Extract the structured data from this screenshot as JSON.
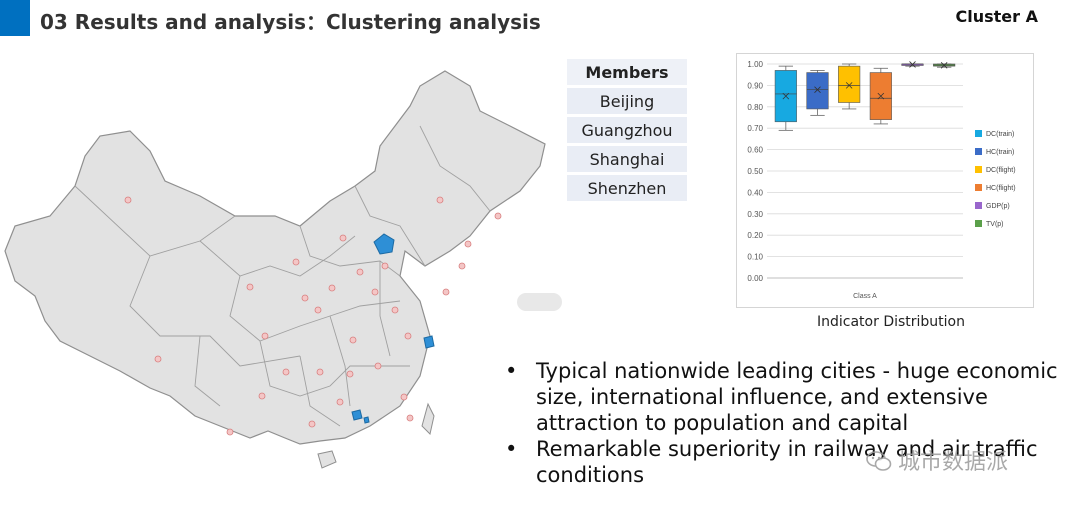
{
  "title": "03 Results and analysis：Clustering analysis",
  "cluster_label": "Cluster A",
  "members": {
    "header": "Members",
    "items": [
      "Beijing",
      "Guangzhou",
      "Shanghai",
      "Shenzhen"
    ]
  },
  "chart_caption": "Indicator Distribution",
  "bullets": [
    "Typical nationwide leading cities - huge economic size, international influence, and extensive attraction to population and capital",
    "Remarkable superiority in railway and air traffic conditions"
  ],
  "watermark": {
    "text": "城市数据派",
    "icon": "wechat-icon"
  },
  "colors": {
    "accent": "#0070c0",
    "map_fill": "#e2e2e2",
    "map_highlight": "#2e8fd6"
  },
  "chart_data": {
    "type": "box",
    "category": "Class A",
    "ylim": [
      0,
      1
    ],
    "yticks": [
      "0.00",
      "0.10",
      "0.20",
      "0.30",
      "0.40",
      "0.50",
      "0.60",
      "0.70",
      "0.80",
      "0.90",
      "1.00"
    ],
    "legend_position": "right",
    "series": [
      {
        "name": "DC(train)",
        "color": "#17a9e1",
        "min": 0.69,
        "q1": 0.73,
        "median": 0.86,
        "q3": 0.97,
        "max": 0.99,
        "mean": 0.85
      },
      {
        "name": "HC(train)",
        "color": "#3b6cc7",
        "min": 0.76,
        "q1": 0.79,
        "median": 0.88,
        "q3": 0.96,
        "max": 0.97,
        "mean": 0.88
      },
      {
        "name": "DC(flight)",
        "color": "#ffc000",
        "min": 0.79,
        "q1": 0.82,
        "median": 0.9,
        "q3": 0.99,
        "max": 1.0,
        "mean": 0.9
      },
      {
        "name": "HC(flight)",
        "color": "#ed7d31",
        "min": 0.72,
        "q1": 0.74,
        "median": 0.84,
        "q3": 0.96,
        "max": 0.98,
        "mean": 0.85
      },
      {
        "name": "GDP(p)",
        "color": "#9966cc",
        "min": 0.99,
        "q1": 0.995,
        "median": 1.0,
        "q3": 1.0,
        "max": 1.0,
        "mean": 0.998
      },
      {
        "name": "TV(p)",
        "color": "#5ba04a",
        "min": 0.985,
        "q1": 0.99,
        "median": 0.995,
        "q3": 1.0,
        "max": 1.0,
        "mean": 0.994
      }
    ]
  }
}
